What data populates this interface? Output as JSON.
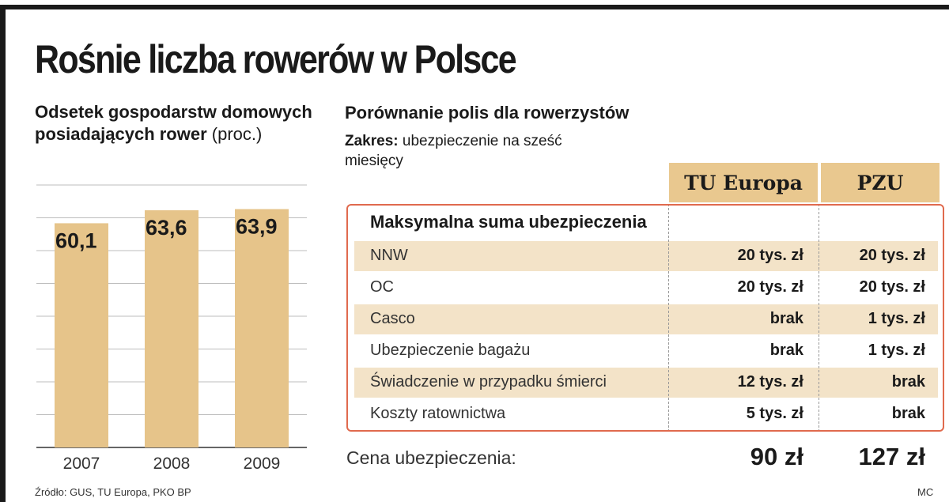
{
  "title": "Rośnie liczba rowerów w Polsce",
  "chart": {
    "title": "Odsetek gospodarstw domowych posiadających rower",
    "unit": "(proc.)"
  },
  "chart_data": {
    "type": "bar",
    "title": "Odsetek gospodarstw domowych posiadających rower",
    "categories": [
      "2007",
      "2008",
      "2009"
    ],
    "values": [
      60.1,
      63.6,
      63.9
    ],
    "value_labels": [
      "60,1",
      "63,6",
      "63,9"
    ],
    "ylabel": "",
    "ylim": [
      0,
      64
    ],
    "grid": true,
    "bar_color": "#e6c48a"
  },
  "comparison": {
    "title": "Porównanie polis dla rowerzystów",
    "scope_label": "Zakres:",
    "scope_value": "ubezpieczenie na sześć miesięcy",
    "columns": [
      "TU Europa",
      "PZU"
    ],
    "section": "Maksymalna suma ubezpieczenia",
    "rows": [
      {
        "label": "NNW",
        "tu_europa": "20 tys. zł",
        "pzu": "20 tys. zł"
      },
      {
        "label": "OC",
        "tu_europa": "20 tys. zł",
        "pzu": "20 tys. zł"
      },
      {
        "label": "Casco",
        "tu_europa": "brak",
        "pzu": "1 tys. zł"
      },
      {
        "label": "Ubezpieczenie bagażu",
        "tu_europa": "brak",
        "pzu": "1 tys. zł"
      },
      {
        "label": "Świadczenie w przypadku śmierci",
        "tu_europa": "12 tys. zł",
        "pzu": "brak"
      },
      {
        "label": "Koszty ratownictwa",
        "tu_europa": "5 tys. zł",
        "pzu": "brak"
      }
    ],
    "price_label": "Cena ubezpieczenia:",
    "price_tu_europa": "90 zł",
    "price_pzu": "127 zł"
  },
  "source": "Źródło: GUS, TU Europa, PKO BP",
  "credit": "MC",
  "colors": {
    "accent": "#e6c48a",
    "border": "#e06a4e",
    "shade": "#f3e3c8"
  }
}
